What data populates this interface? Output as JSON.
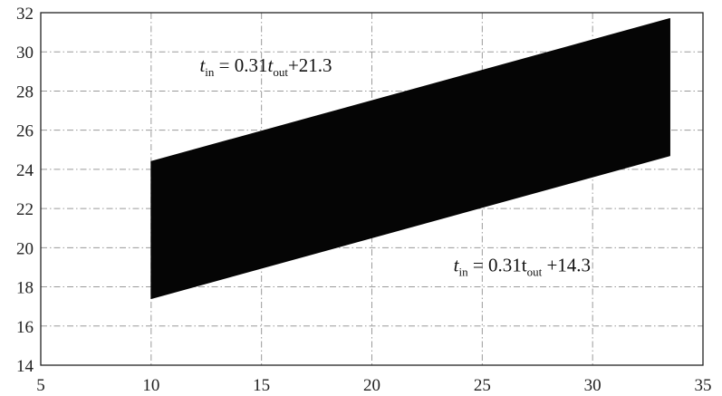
{
  "chart_data": {
    "type": "area",
    "title": "",
    "xlabel": "",
    "ylabel": "",
    "xlim": [
      5,
      35
    ],
    "ylim": [
      14,
      32
    ],
    "xticks": [
      5,
      10,
      15,
      20,
      25,
      30,
      35
    ],
    "yticks": [
      14,
      16,
      18,
      20,
      22,
      24,
      26,
      28,
      30,
      32
    ],
    "grid": true,
    "grid_style": "dash-dot",
    "fill_color": "#050505",
    "series": [
      {
        "x": [
          10,
          33.5
        ],
        "upper": [
          24.4,
          31.7
        ],
        "lower": [
          17.4,
          24.7
        ]
      }
    ],
    "annotations": [
      {
        "var": "t",
        "sub1": "in",
        "mid": " = 0.31",
        "var2": "t",
        "sub2": "out",
        "tail": "+21.3",
        "at": [
          12.2,
          29.0
        ]
      },
      {
        "var": "t",
        "sub1": "in",
        "mid": " = 0.31t",
        "var2": "",
        "sub2": "out",
        "tail": " +14.3",
        "at": [
          23.7,
          18.8
        ]
      }
    ]
  }
}
